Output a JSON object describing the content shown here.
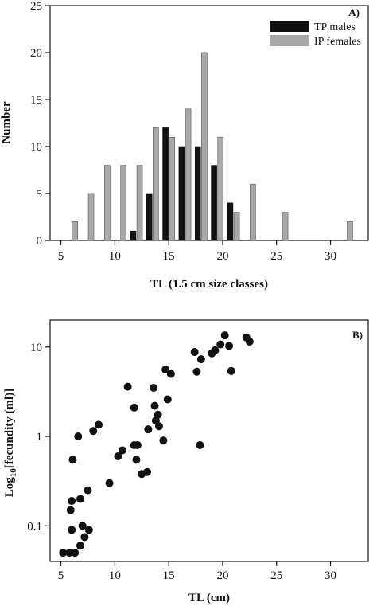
{
  "chart_data": [
    {
      "type": "bar",
      "panel_label": "A)",
      "xlabel": "TL (1.5 cm size classes)",
      "ylabel": "Number",
      "xlim": [
        4,
        33.5
      ],
      "ylim": [
        0,
        25
      ],
      "xticks": [
        5,
        10,
        15,
        20,
        25,
        30
      ],
      "yticks": [
        0,
        5,
        10,
        15,
        20,
        25
      ],
      "legend_position": "top-right",
      "series": [
        {
          "name": "TP males",
          "color": "#111111",
          "points": [
            {
              "x": 11.7,
              "y": 1
            },
            {
              "x": 13.2,
              "y": 5
            },
            {
              "x": 14.7,
              "y": 12
            },
            {
              "x": 16.2,
              "y": 10
            },
            {
              "x": 17.7,
              "y": 10
            },
            {
              "x": 19.2,
              "y": 8
            },
            {
              "x": 20.7,
              "y": 4
            }
          ]
        },
        {
          "name": "IP females",
          "color": "#a8a8a8",
          "points": [
            {
              "x": 6.3,
              "y": 2
            },
            {
              "x": 7.8,
              "y": 5
            },
            {
              "x": 9.3,
              "y": 8
            },
            {
              "x": 10.8,
              "y": 8
            },
            {
              "x": 12.3,
              "y": 8
            },
            {
              "x": 13.8,
              "y": 12
            },
            {
              "x": 15.3,
              "y": 11
            },
            {
              "x": 16.8,
              "y": 14
            },
            {
              "x": 18.3,
              "y": 20
            },
            {
              "x": 19.8,
              "y": 11
            },
            {
              "x": 21.3,
              "y": 3
            },
            {
              "x": 22.8,
              "y": 6
            },
            {
              "x": 25.8,
              "y": 3
            },
            {
              "x": 31.8,
              "y": 2
            }
          ]
        }
      ]
    },
    {
      "type": "scatter",
      "panel_label": "B)",
      "xlabel": "TL (cm)",
      "ylabel_main": "Log",
      "ylabel_sub": "10",
      "ylabel_rest": "[fecundity (ml)]",
      "y_scale": "log",
      "xlim": [
        4,
        33.5
      ],
      "ylim": [
        0.04,
        20
      ],
      "xticks": [
        5,
        10,
        15,
        20,
        25,
        30
      ],
      "yticks": [
        0.1,
        1,
        10
      ],
      "ytick_labels": [
        "0.1",
        "1",
        "10"
      ],
      "series": [
        {
          "color": "#111111",
          "points": [
            {
              "x": 5.2,
              "y": 0.05
            },
            {
              "x": 5.8,
              "y": 0.05
            },
            {
              "x": 6.3,
              "y": 0.05
            },
            {
              "x": 6.8,
              "y": 0.06
            },
            {
              "x": 7.2,
              "y": 0.075
            },
            {
              "x": 7.6,
              "y": 0.09
            },
            {
              "x": 7.0,
              "y": 0.1
            },
            {
              "x": 6.0,
              "y": 0.09
            },
            {
              "x": 5.9,
              "y": 0.15
            },
            {
              "x": 6.0,
              "y": 0.19
            },
            {
              "x": 6.8,
              "y": 0.2
            },
            {
              "x": 7.5,
              "y": 0.25
            },
            {
              "x": 9.5,
              "y": 0.3
            },
            {
              "x": 6.1,
              "y": 0.55
            },
            {
              "x": 6.6,
              "y": 1.0
            },
            {
              "x": 8.0,
              "y": 1.15
            },
            {
              "x": 8.5,
              "y": 1.35
            },
            {
              "x": 10.3,
              "y": 0.6
            },
            {
              "x": 10.7,
              "y": 0.7
            },
            {
              "x": 11.8,
              "y": 0.8
            },
            {
              "x": 12.1,
              "y": 0.8
            },
            {
              "x": 12.0,
              "y": 0.55
            },
            {
              "x": 12.5,
              "y": 0.38
            },
            {
              "x": 13.0,
              "y": 0.4
            },
            {
              "x": 11.2,
              "y": 3.6
            },
            {
              "x": 11.8,
              "y": 2.1
            },
            {
              "x": 13.1,
              "y": 1.2
            },
            {
              "x": 13.6,
              "y": 3.5
            },
            {
              "x": 13.7,
              "y": 2.2
            },
            {
              "x": 13.8,
              "y": 1.5
            },
            {
              "x": 14.0,
              "y": 1.75
            },
            {
              "x": 14.1,
              "y": 1.3
            },
            {
              "x": 14.5,
              "y": 0.9
            },
            {
              "x": 14.7,
              "y": 5.6
            },
            {
              "x": 14.9,
              "y": 2.6
            },
            {
              "x": 15.2,
              "y": 5.0
            },
            {
              "x": 17.4,
              "y": 8.8
            },
            {
              "x": 17.6,
              "y": 5.3
            },
            {
              "x": 18.0,
              "y": 7.3
            },
            {
              "x": 17.9,
              "y": 0.8
            },
            {
              "x": 19.0,
              "y": 8.5
            },
            {
              "x": 19.3,
              "y": 9.2
            },
            {
              "x": 19.8,
              "y": 10.7
            },
            {
              "x": 20.2,
              "y": 13.5
            },
            {
              "x": 20.6,
              "y": 10.3
            },
            {
              "x": 20.8,
              "y": 5.4
            },
            {
              "x": 22.2,
              "y": 12.8
            },
            {
              "x": 22.5,
              "y": 11.5
            }
          ]
        }
      ]
    }
  ]
}
